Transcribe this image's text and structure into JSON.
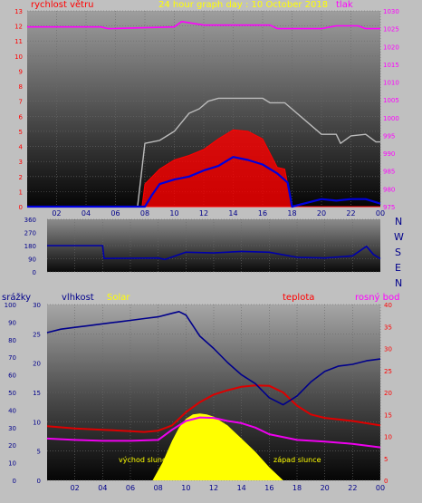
{
  "colors": {
    "background": "#c0c0c0",
    "wind": "#ff0000",
    "pressure": "#ff00ff",
    "direction": "#0000aa",
    "humidity": "#00008b",
    "solar": "#ffff00",
    "temperature": "#dd0000",
    "dewpoint": "#ee00ee",
    "gust": "#bbbbbb"
  },
  "chart_data": [
    {
      "type": "line",
      "title": "24 hour graph day : 10 October 2018",
      "left_axis_label": "rychlost větru",
      "right_axis_label": "tlak",
      "x_ticks": [
        "02",
        "04",
        "06",
        "08",
        "10",
        "12",
        "14",
        "16",
        "18",
        "20",
        "22",
        "00"
      ],
      "xlim": [
        0,
        24
      ],
      "left_ticks": [
        "0",
        "1",
        "2",
        "3",
        "4",
        "5",
        "6",
        "7",
        "8",
        "9",
        "10",
        "11",
        "12",
        "13"
      ],
      "left_ylim": [
        0,
        13
      ],
      "right_ticks": [
        "975",
        "980",
        "985",
        "990",
        "995",
        "1000",
        "1005",
        "1010",
        "1015",
        "1020",
        "1025",
        "1030"
      ],
      "right_ylim": [
        975,
        1030
      ],
      "grid": true,
      "series": [
        {
          "role": "gust",
          "x": [
            0,
            7.5,
            8,
            9,
            10,
            11,
            11.7,
            12.3,
            13,
            14,
            15,
            16,
            16.5,
            17.5,
            20,
            21,
            21.3,
            22,
            23,
            23.7,
            24
          ],
          "y": [
            0,
            0,
            4.2,
            4.4,
            5.0,
            6.2,
            6.5,
            7.0,
            7.2,
            7.2,
            7.2,
            7.2,
            6.9,
            6.9,
            4.8,
            4.8,
            4.2,
            4.7,
            4.8,
            4.3,
            4.3
          ]
        },
        {
          "role": "wind",
          "x": [
            0,
            7.8,
            8,
            9,
            10,
            11,
            12,
            13,
            14,
            15,
            16,
            17,
            17.5,
            18,
            24
          ],
          "y": [
            0,
            0,
            1.5,
            2.5,
            3.1,
            3.4,
            3.8,
            4.5,
            5.1,
            5.0,
            4.5,
            2.6,
            2.5,
            0,
            0
          ]
        },
        {
          "role": "wind_avg",
          "x": [
            0,
            8,
            8.5,
            9,
            10,
            11,
            12,
            13,
            14,
            15,
            16,
            17,
            17.7,
            18,
            20,
            21,
            22,
            23,
            24
          ],
          "y": [
            0,
            0,
            0.8,
            1.5,
            1.8,
            2.0,
            2.4,
            2.7,
            3.3,
            3.1,
            2.8,
            2.2,
            1.6,
            0,
            0.5,
            0.4,
            0.5,
            0.5,
            0.2
          ]
        },
        {
          "role": "pressure",
          "x": [
            0,
            5,
            5.5,
            10,
            10.5,
            12,
            16.5,
            17,
            20,
            21,
            22.5,
            23,
            24
          ],
          "y": [
            1025.5,
            1025.5,
            1025,
            1025.5,
            1027,
            1026,
            1026,
            1025,
            1025,
            1025.8,
            1025.8,
            1025,
            1025
          ]
        }
      ]
    },
    {
      "type": "line",
      "x_ticks": [],
      "xlim": [
        0,
        24
      ],
      "left_ticks": [
        "0",
        "90",
        "180",
        "270",
        "360"
      ],
      "ylim": [
        0,
        360
      ],
      "compass": [
        "N",
        "W",
        "S",
        "E",
        "N"
      ],
      "grid": true,
      "series": [
        {
          "role": "direction",
          "x": [
            0,
            4,
            4.1,
            8,
            8.5,
            10,
            12,
            14,
            16,
            18,
            20,
            22,
            23,
            23.5,
            24
          ],
          "y": [
            180,
            180,
            92,
            95,
            85,
            135,
            130,
            140,
            135,
            100,
            95,
            110,
            175,
            120,
            90
          ]
        }
      ]
    },
    {
      "type": "line",
      "legend": [
        "srážky",
        "vlhkost",
        "Solar",
        "teplota",
        "rosný bod"
      ],
      "x_ticks": [
        "02",
        "04",
        "06",
        "08",
        "10",
        "12",
        "14",
        "16",
        "18",
        "20",
        "22",
        "00"
      ],
      "xlim": [
        0,
        24
      ],
      "rain_ticks": [
        "0",
        "10",
        "20",
        "30",
        "40",
        "50",
        "60",
        "70",
        "80",
        "90",
        "100"
      ],
      "rain_ylim": [
        0,
        100
      ],
      "left_ticks": [
        "0",
        "5",
        "10",
        "15",
        "20",
        "25",
        "30"
      ],
      "left_ylim": [
        0,
        30
      ],
      "right_ticks": [
        "0",
        "5",
        "10",
        "15",
        "20",
        "25",
        "30",
        "35",
        "40"
      ],
      "right_ylim": [
        0,
        40
      ],
      "annotations": [
        "východ slunce",
        "západ slunce"
      ],
      "grid": true,
      "series": [
        {
          "role": "humidity",
          "x": [
            0,
            1,
            2,
            3,
            4,
            5,
            6,
            7,
            8,
            9,
            9.5,
            10,
            11,
            12,
            13,
            14,
            15,
            16,
            17,
            18,
            19,
            20,
            21,
            22,
            23,
            24
          ],
          "y": [
            84,
            86,
            87,
            88,
            89,
            90,
            91,
            92,
            93,
            95,
            96,
            94,
            82,
            75,
            67,
            60,
            55,
            47,
            43,
            48,
            56,
            62,
            65,
            66,
            68,
            69
          ]
        },
        {
          "role": "temperature",
          "x": [
            0,
            2,
            4,
            6,
            7,
            8,
            9,
            10,
            11,
            12,
            13,
            14,
            15,
            16,
            17,
            18,
            19,
            20,
            22,
            24
          ],
          "y": [
            12.3,
            11.8,
            11.5,
            11.2,
            11,
            11.3,
            12.5,
            15.5,
            17.8,
            19.5,
            20.5,
            21.3,
            21.6,
            21.5,
            20,
            17,
            15,
            14.2,
            13.5,
            12.5
          ]
        },
        {
          "role": "dewpoint",
          "x": [
            0,
            2,
            4,
            6,
            8,
            9,
            10,
            11,
            12,
            13,
            14,
            15,
            16,
            18,
            20,
            22,
            24
          ],
          "y": [
            9.5,
            9.2,
            9,
            9,
            9.2,
            11.5,
            13.5,
            14.3,
            14.2,
            13.5,
            13,
            12,
            10.5,
            9.2,
            8.8,
            8.3,
            7.5
          ]
        },
        {
          "role": "solar",
          "x": [
            0,
            7.6,
            8.3,
            9,
            9.5,
            10,
            10.5,
            11,
            11.5,
            12,
            13,
            14,
            15,
            16,
            16.5,
            17,
            24
          ],
          "y": [
            0,
            0,
            4,
            9,
            12,
            14,
            15,
            15.2,
            15,
            14.5,
            12.5,
            9.5,
            6.5,
            3,
            1.5,
            0,
            0
          ]
        }
      ]
    }
  ]
}
